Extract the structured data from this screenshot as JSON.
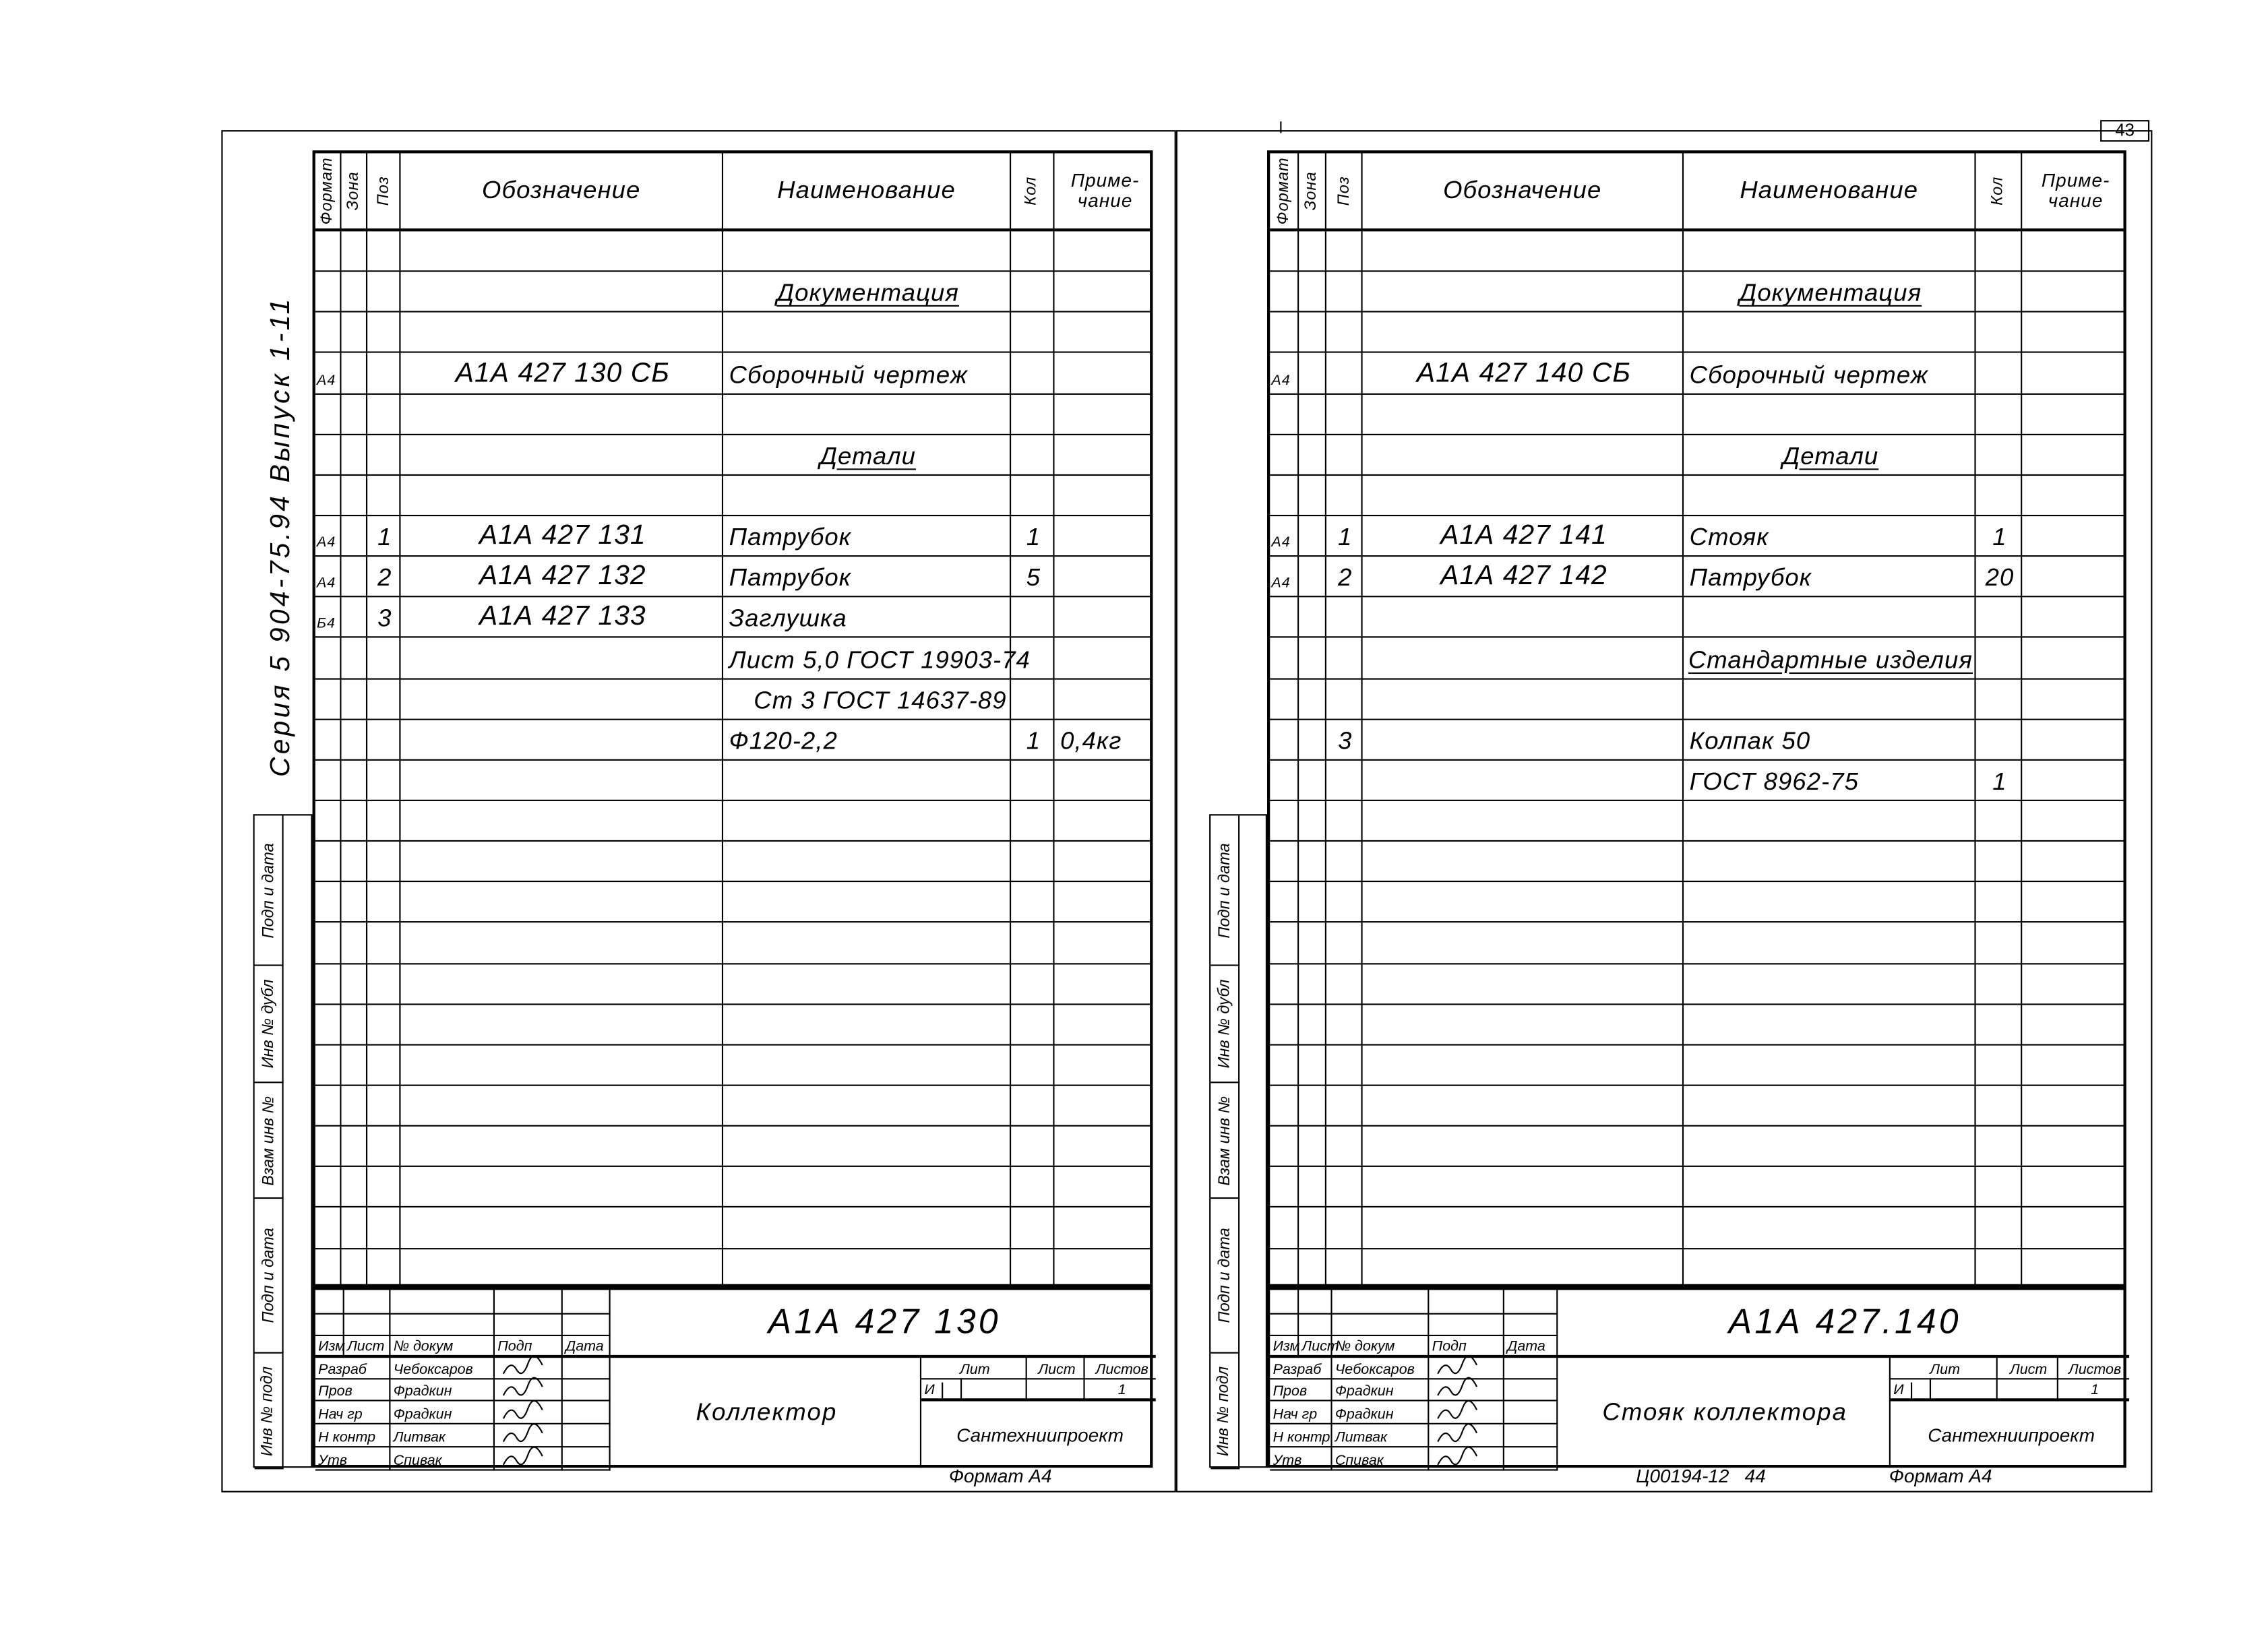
{
  "page_number": "43",
  "headers": {
    "format": "Формат",
    "zone": "Зона",
    "pos": "Поз",
    "designation": "Обозначение",
    "name": "Наименование",
    "qty": "Кол",
    "note": "Приме-чание"
  },
  "sheets": [
    {
      "side_stamp": {
        "series": "Серия 5 904-75.94 Выпуск 1-11",
        "fields": [
          "Подп и дата",
          "Инв № дубл",
          "Взам инв №",
          "Подп и дата",
          "Инв № подл"
        ]
      },
      "rows": [
        {},
        {
          "name": "Документация",
          "underline": true
        },
        {},
        {
          "format": "А4",
          "designation": "А1А 427 130 СБ",
          "name": "Сборочный чертеж"
        },
        {},
        {
          "name": "Детали",
          "underline": true
        },
        {},
        {
          "format": "А4",
          "pos": "1",
          "designation": "А1А 427 131",
          "name": "Патрубок",
          "qty": "1"
        },
        {
          "format": "А4",
          "pos": "2",
          "designation": "А1А 427 132",
          "name": "Патрубок",
          "qty": "5"
        },
        {
          "format": "Б4",
          "pos": "3",
          "designation": "А1А 427 133",
          "name": "Заглушка"
        },
        {
          "name": "Лист 5,0 ГОСТ 19903-74"
        },
        {
          "name": "Ст 3 ГОСТ 14637-89"
        },
        {
          "name": "Ф120-2,2",
          "qty": "1",
          "note": "0,4кг"
        },
        {},
        {},
        {},
        {},
        {},
        {},
        {},
        {},
        {},
        {},
        {},
        {},
        {}
      ],
      "title_block": {
        "doc_number": "А1А 427 130",
        "title": "Коллектор",
        "labels": {
          "change": "Изм",
          "sheet": "Лист",
          "doc_no": "№ докум",
          "sign": "Подп",
          "date": "Дата",
          "lit": "Лит",
          "sheet_no": "Лист",
          "sheets": "Листов"
        },
        "people": [
          {
            "role": "Разраб",
            "name": "Чебоксаров"
          },
          {
            "role": "Пров",
            "name": "Фрадкин"
          },
          {
            "role": "Нач гр",
            "name": "Фрадкин"
          },
          {
            "role": "Н контр",
            "name": "Литвак"
          },
          {
            "role": "Утв",
            "name": "Спивак"
          }
        ],
        "lit_value": "И",
        "sheets_value": "1",
        "organization": "Сантехниипроект"
      },
      "footer": {
        "code": "",
        "format": "Формат А4"
      }
    },
    {
      "side_stamp": {
        "series": "",
        "fields": [
          "Подп и дата",
          "Инв № дубл",
          "Взам инв №",
          "Подп и дата",
          "Инв № подл"
        ]
      },
      "rows": [
        {},
        {
          "name": "Документация",
          "underline": true
        },
        {},
        {
          "format": "А4",
          "designation": "А1А 427 140 СБ",
          "name": "Сборочный чертеж"
        },
        {},
        {
          "name": "Детали",
          "underline": true
        },
        {},
        {
          "format": "А4",
          "pos": "1",
          "designation": "А1А 427 141",
          "name": "Стояк",
          "qty": "1"
        },
        {
          "format": "А4",
          "pos": "2",
          "designation": "А1А 427 142",
          "name": "Патрубок",
          "qty": "20"
        },
        {},
        {
          "name": "Стандартные изделия",
          "underline": true
        },
        {},
        {
          "pos": "3",
          "name": "Колпак 50"
        },
        {
          "name": "ГОСТ 8962-75",
          "qty": "1"
        },
        {},
        {},
        {},
        {},
        {},
        {},
        {},
        {},
        {},
        {},
        {},
        {}
      ],
      "title_block": {
        "doc_number": "А1А 427.140",
        "title": "Стояк коллектора",
        "labels": {
          "change": "Изм",
          "sheet": "Лист",
          "doc_no": "№ докум",
          "sign": "Подп",
          "date": "Дата",
          "lit": "Лит",
          "sheet_no": "Лист",
          "sheets": "Листов"
        },
        "people": [
          {
            "role": "Разраб",
            "name": "Чебоксаров"
          },
          {
            "role": "Пров",
            "name": "Фрадкин"
          },
          {
            "role": "Нач гр",
            "name": "Фрадкин"
          },
          {
            "role": "Н контр",
            "name": "Литвак"
          },
          {
            "role": "Утв",
            "name": "Спивак"
          }
        ],
        "lit_value": "И",
        "sheets_value": "1",
        "organization": "Сантехниипроект"
      },
      "footer": {
        "code": "Ц00194-12   44",
        "format": "Формат А4"
      }
    }
  ]
}
